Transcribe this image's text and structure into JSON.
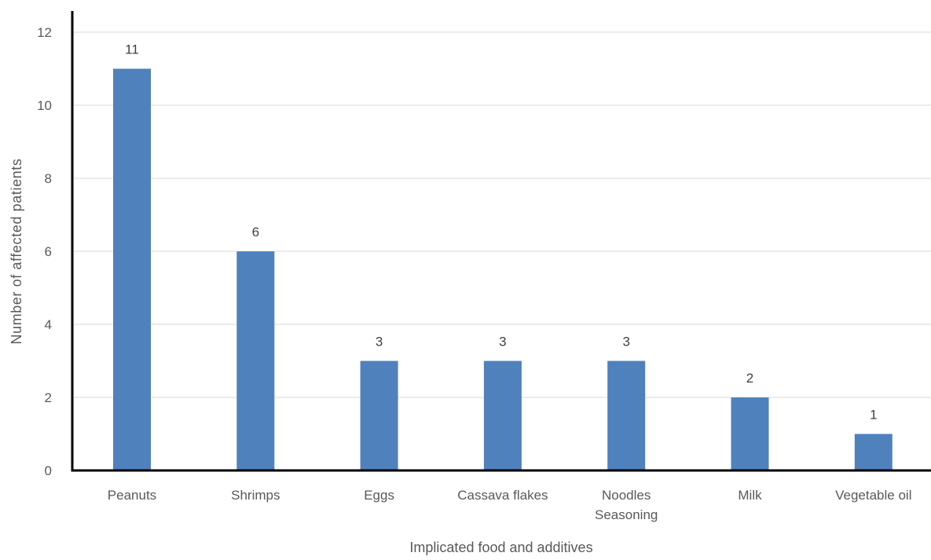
{
  "chart_data": {
    "type": "bar",
    "title": "",
    "xlabel": "Implicated food and additives",
    "ylabel": "Number of affected patients",
    "categories": [
      [
        "Peanuts"
      ],
      [
        "Shrimps"
      ],
      [
        "Eggs"
      ],
      [
        "Cassava flakes"
      ],
      [
        "Noodles",
        "Seasoning"
      ],
      [
        "Milk"
      ],
      [
        "Vegetable oil"
      ]
    ],
    "values": [
      11,
      6,
      3,
      3,
      3,
      2,
      1
    ],
    "ylim": [
      0,
      12
    ],
    "yticks": [
      0,
      2,
      4,
      6,
      8,
      10,
      12
    ],
    "grid": true,
    "legend": "none",
    "colors": {
      "bar": "#4f81bd",
      "grid": "#d9d9d9",
      "axis": "#000000"
    }
  }
}
